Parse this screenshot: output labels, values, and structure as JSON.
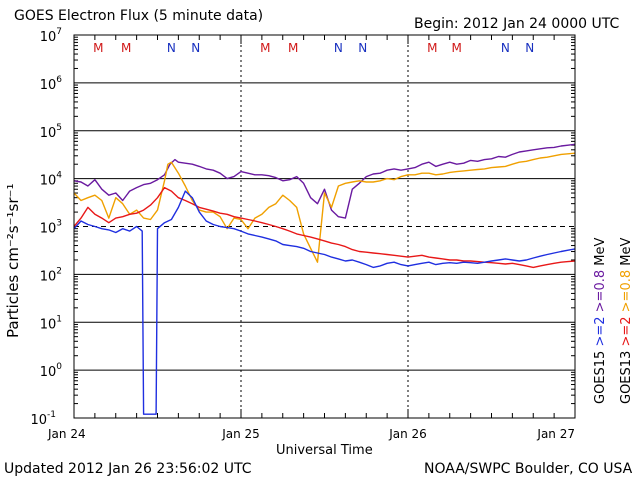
{
  "header": {
    "title": "GOES Electron Flux (5 minute data)",
    "begin": "Begin: 2012 Jan 24 0000 UTC"
  },
  "footer": {
    "updated": "Updated 2012 Jan 26 23:56:02 UTC",
    "credit": "NOAA/SWPC Boulder, CO USA"
  },
  "colors": {
    "goes15_2mev": "#1f2fe0",
    "goes13_2mev": "#e81818",
    "goes15_08mev": "#6a1aa0",
    "goes13_08mev": "#f0a000",
    "marker_M": "#d01818",
    "marker_N": "#1830c0"
  },
  "chart_data": {
    "type": "line",
    "title": "GOES Electron Flux (5 minute data)",
    "xlabel": "Universal Time",
    "ylabel": "Particles cm⁻²s⁻¹sr⁻¹",
    "y_scale": "log",
    "ylim": [
      0.1,
      10000000
    ],
    "xlim": [
      0,
      72
    ],
    "x_unit": "hours since 2012 Jan 24 0000 UTC",
    "x_tick_values": [
      0,
      24,
      48,
      72
    ],
    "x_tick_labels": [
      "Jan 24",
      "Jan 25",
      "Jan 26",
      "Jan 27"
    ],
    "y_tick_values": [
      0.1,
      1,
      10,
      100,
      1000,
      10000,
      100000,
      1000000,
      10000000
    ],
    "y_tick_labels": [
      {
        "base": "10",
        "exp": "-1"
      },
      {
        "base": "10",
        "exp": "0"
      },
      {
        "base": "10",
        "exp": "1"
      },
      {
        "base": "10",
        "exp": "2"
      },
      {
        "base": "10",
        "exp": "3"
      },
      {
        "base": "10",
        "exp": "4"
      },
      {
        "base": "10",
        "exp": "5"
      },
      {
        "base": "10",
        "exp": "6"
      },
      {
        "base": "10",
        "exp": "7"
      }
    ],
    "alert_threshold": 1000,
    "markers": [
      {
        "x": 3.5,
        "label": "M"
      },
      {
        "x": 7.5,
        "label": "M"
      },
      {
        "x": 14.0,
        "label": "N"
      },
      {
        "x": 17.5,
        "label": "N"
      },
      {
        "x": 27.5,
        "label": "M"
      },
      {
        "x": 31.5,
        "label": "M"
      },
      {
        "x": 38.0,
        "label": "N"
      },
      {
        "x": 41.5,
        "label": "N"
      },
      {
        "x": 51.5,
        "label": "M"
      },
      {
        "x": 55.0,
        "label": "M"
      },
      {
        "x": 62.0,
        "label": "N"
      },
      {
        "x": 65.5,
        "label": "N"
      }
    ],
    "legend": [
      {
        "satellite": "GOES15",
        "text": ">=2",
        "unit": "MeV",
        "color_key": "goes15_2mev"
      },
      {
        "satellite": "GOES15",
        "text": ">=0.8",
        "unit": "MeV",
        "color_key": "goes15_08mev"
      },
      {
        "satellite": "GOES13",
        "text": ">=2",
        "unit": "MeV",
        "color_key": "goes13_2mev"
      },
      {
        "satellite": "GOES13",
        "text": ">=0.8",
        "unit": "MeV",
        "color_key": "goes13_08mev"
      }
    ],
    "legend_satellites": [
      "GOES15",
      "GOES13"
    ],
    "legend_energies": [
      ">=2",
      ">=0.8"
    ],
    "legend_unit": "MeV",
    "series": [
      {
        "name": "GOES15 >=0.8 MeV",
        "color_key": "goes15_08mev",
        "x": [
          0,
          1,
          2,
          3,
          4,
          5,
          6,
          7,
          8,
          9,
          10,
          11,
          12,
          13,
          13.8,
          14.5,
          15,
          16,
          17,
          18,
          19,
          20,
          21,
          22,
          23,
          24,
          25,
          26,
          27,
          28,
          29,
          30,
          31,
          32,
          33,
          34,
          35,
          36,
          37,
          38,
          39,
          40,
          41,
          42,
          43,
          44,
          45,
          46,
          47,
          48,
          49,
          50,
          51,
          52,
          53,
          54,
          55,
          56,
          57,
          58,
          59,
          60,
          61,
          62,
          63,
          64,
          65,
          66,
          67,
          68,
          69,
          70,
          71,
          72
        ],
        "y": [
          9000,
          8500,
          7000,
          9500,
          6000,
          4500,
          5000,
          3500,
          5500,
          6500,
          7500,
          8000,
          9500,
          12000,
          20000,
          25000,
          22000,
          21000,
          20000,
          18000,
          16000,
          15000,
          13000,
          10000,
          11000,
          14000,
          13000,
          12000,
          12000,
          11500,
          10500,
          9000,
          9500,
          11000,
          8000,
          4000,
          3000,
          6000,
          2200,
          1600,
          1500,
          6000,
          8000,
          11000,
          12500,
          13000,
          15000,
          16000,
          15000,
          16000,
          17000,
          20000,
          22000,
          18000,
          20000,
          22000,
          20000,
          21000,
          24000,
          23000,
          25000,
          26000,
          29000,
          28000,
          32000,
          36000,
          38000,
          40000,
          42000,
          44000,
          45000,
          48000,
          50000,
          52000
        ]
      },
      {
        "name": "GOES13 >=0.8 MeV",
        "color_key": "goes13_08mev",
        "x": [
          0,
          1,
          2,
          3,
          4,
          5,
          6,
          7,
          8,
          9,
          10,
          11,
          12,
          13,
          13.5,
          14,
          15,
          16,
          17,
          18,
          19,
          20,
          21,
          22,
          23,
          24,
          25,
          26,
          27,
          28,
          29,
          30,
          31,
          32,
          33,
          34,
          35,
          36,
          37,
          38,
          39,
          40,
          41,
          42,
          43,
          44,
          45,
          46,
          47,
          48,
          49,
          50,
          51,
          52,
          53,
          54,
          55,
          56,
          57,
          58,
          59,
          60,
          61,
          62,
          63,
          64,
          65,
          66,
          67,
          68,
          69,
          70,
          71,
          72
        ],
        "y": [
          5000,
          3500,
          4000,
          4500,
          3500,
          1500,
          4000,
          3000,
          1800,
          2200,
          1500,
          1400,
          2200,
          9000,
          20000,
          22000,
          13000,
          7000,
          3500,
          2200,
          2000,
          2000,
          1600,
          900,
          1500,
          1400,
          900,
          1500,
          1800,
          2500,
          3000,
          4500,
          3500,
          2500,
          700,
          350,
          180,
          5000,
          2500,
          7000,
          8000,
          8500,
          9000,
          8500,
          8500,
          9000,
          10000,
          9500,
          11000,
          12000,
          12000,
          13000,
          13000,
          12000,
          12500,
          13500,
          14000,
          14500,
          15000,
          15500,
          16000,
          17000,
          17500,
          18000,
          20000,
          22000,
          23000,
          25000,
          27000,
          28000,
          30000,
          32000,
          33000,
          34000
        ]
      },
      {
        "name": "GOES13 >=2 MeV",
        "color_key": "goes13_2mev",
        "x": [
          0,
          1,
          2,
          3,
          4,
          5,
          6,
          7,
          8,
          9,
          10,
          11,
          12,
          13,
          14,
          15,
          16,
          17,
          18,
          19,
          20,
          21,
          22,
          23,
          24,
          25,
          26,
          27,
          28,
          29,
          30,
          31,
          32,
          33,
          34,
          35,
          36,
          37,
          38,
          39,
          40,
          41,
          42,
          43,
          44,
          45,
          46,
          47,
          48,
          49,
          50,
          51,
          52,
          53,
          54,
          55,
          56,
          57,
          58,
          59,
          60,
          61,
          62,
          63,
          64,
          65,
          66,
          67,
          68,
          69,
          70,
          71,
          72
        ],
        "y": [
          1000,
          1500,
          2500,
          1800,
          1500,
          1200,
          1500,
          1600,
          1800,
          1900,
          2200,
          2800,
          4000,
          6500,
          5500,
          4000,
          3500,
          3000,
          2500,
          2300,
          2100,
          1900,
          1800,
          1600,
          1500,
          1400,
          1300,
          1200,
          1100,
          1000,
          900,
          800,
          700,
          650,
          600,
          550,
          500,
          450,
          420,
          380,
          330,
          300,
          290,
          280,
          270,
          260,
          250,
          240,
          230,
          240,
          250,
          230,
          220,
          210,
          200,
          200,
          190,
          190,
          185,
          180,
          175,
          170,
          165,
          170,
          160,
          150,
          140,
          150,
          160,
          170,
          180,
          185,
          190
        ]
      },
      {
        "name": "GOES15 >=2 MeV",
        "color_key": "goes15_2mev",
        "x": [
          0,
          1,
          2,
          3,
          4,
          5,
          6,
          7,
          8,
          9,
          9.8,
          10,
          11,
          11.8,
          12,
          13,
          14,
          15,
          16,
          17,
          18,
          19,
          20,
          21,
          22,
          23,
          24,
          25,
          26,
          27,
          28,
          29,
          30,
          31,
          32,
          33,
          34,
          35,
          36,
          37,
          38,
          39,
          40,
          41,
          42,
          43,
          44,
          45,
          46,
          47,
          48,
          49,
          50,
          51,
          52,
          53,
          54,
          55,
          56,
          57,
          58,
          59,
          60,
          61,
          62,
          63,
          64,
          65,
          66,
          67,
          68,
          69,
          70,
          71,
          72
        ],
        "y": [
          900,
          1300,
          1100,
          1000,
          900,
          850,
          750,
          900,
          800,
          1000,
          800,
          0.12,
          0.12,
          0.12,
          900,
          1200,
          1400,
          2500,
          5500,
          4000,
          2000,
          1300,
          1100,
          1000,
          950,
          900,
          800,
          700,
          650,
          600,
          550,
          500,
          420,
          400,
          380,
          350,
          300,
          280,
          260,
          230,
          210,
          190,
          200,
          180,
          160,
          140,
          150,
          170,
          180,
          160,
          150,
          160,
          170,
          180,
          160,
          170,
          175,
          170,
          180,
          175,
          170,
          180,
          190,
          200,
          210,
          200,
          190,
          200,
          220,
          240,
          260,
          280,
          300,
          320,
          340
        ]
      }
    ]
  }
}
